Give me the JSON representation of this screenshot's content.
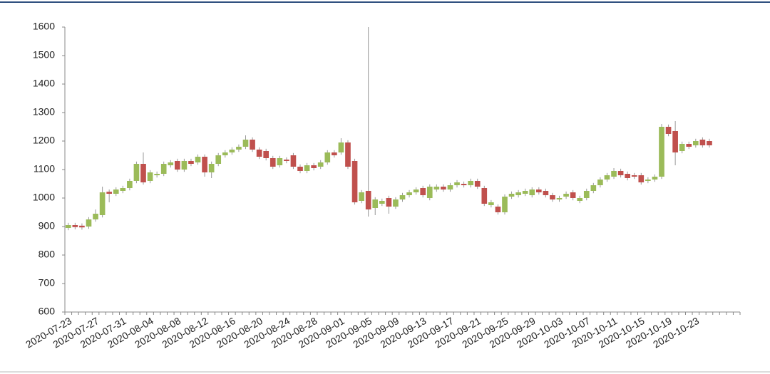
{
  "chart_data": {
    "type": "candlestick",
    "categories": [
      "2020-07-23",
      null,
      null,
      null,
      "2020-07-27",
      null,
      null,
      null,
      "2020-07-31",
      null,
      null,
      null,
      "2020-08-04",
      null,
      null,
      null,
      "2020-08-08",
      null,
      null,
      null,
      "2020-08-12",
      null,
      null,
      null,
      "2020-08-16",
      null,
      null,
      null,
      "2020-08-20",
      null,
      null,
      null,
      "2020-08-24",
      null,
      null,
      null,
      "2020-08-28",
      null,
      null,
      null,
      "2020-09-01",
      null,
      null,
      null,
      "2020-09-05",
      null,
      null,
      null,
      "2020-09-09",
      null,
      null,
      null,
      "2020-09-13",
      null,
      null,
      null,
      "2020-09-17",
      null,
      null,
      null,
      "2020-09-21",
      null,
      null,
      null,
      "2020-09-25",
      null,
      null,
      null,
      "2020-09-29",
      null,
      null,
      null,
      "2020-10-03",
      null,
      null,
      null,
      "2020-10-07",
      null,
      null,
      null,
      "2020-10-11",
      null,
      null,
      null,
      "2020-10-15",
      null,
      null,
      null,
      "2020-10-19",
      null,
      null,
      null,
      "2020-10-23",
      null,
      null,
      null,
      null,
      null,
      null
    ],
    "open": [
      895,
      905,
      903,
      900,
      925,
      940,
      1022,
      1015,
      1025,
      1035,
      1060,
      1120,
      1060,
      1080,
      1085,
      1115,
      1130,
      1100,
      1130,
      1125,
      1145,
      1090,
      1120,
      1150,
      1160,
      1170,
      1180,
      1205,
      1170,
      1165,
      1140,
      1115,
      1135,
      1150,
      1110,
      1095,
      1115,
      1110,
      1125,
      1160,
      1160,
      1195,
      1130,
      990,
      1025,
      965,
      980,
      1000,
      970,
      995,
      1010,
      1020,
      1035,
      1000,
      1030,
      1040,
      1030,
      1045,
      1050,
      1045,
      1060,
      1035,
      975,
      970,
      950,
      1005,
      1010,
      1015,
      1010,
      1030,
      1025,
      1010,
      995,
      1005,
      1020,
      990,
      1000,
      1025,
      1045,
      1065,
      1075,
      1095,
      1085,
      1080,
      1080,
      1060,
      1065,
      1075,
      1250,
      1235,
      1165,
      1190,
      1185,
      1205,
      1200,
      null,
      null,
      null,
      null
    ],
    "high": [
      913,
      913,
      911,
      933,
      960,
      1040,
      1030,
      1038,
      1043,
      1068,
      1128,
      1160,
      1098,
      1093,
      1128,
      1133,
      1138,
      1138,
      1138,
      1153,
      1153,
      1128,
      1158,
      1168,
      1178,
      1188,
      1220,
      1213,
      1178,
      1173,
      1148,
      1148,
      1143,
      1158,
      1118,
      1123,
      1123,
      1133,
      1168,
      1168,
      1210,
      1203,
      1138,
      1028,
      1600,
      1003,
      998,
      1008,
      1003,
      1018,
      1028,
      1038,
      1043,
      1048,
      1048,
      1048,
      1053,
      1063,
      1058,
      1068,
      1068,
      1043,
      993,
      978,
      1013,
      1023,
      1028,
      1033,
      1038,
      1038,
      1033,
      1018,
      1008,
      1023,
      1028,
      1008,
      1033,
      1053,
      1073,
      1088,
      1105,
      1103,
      1093,
      1088,
      1088,
      1073,
      1083,
      1260,
      1258,
      1270,
      1198,
      1198,
      1208,
      1213,
      1208,
      null,
      null,
      null,
      null
    ],
    "low": [
      887,
      890,
      889,
      892,
      917,
      932,
      985,
      1007,
      1017,
      1027,
      1052,
      1047,
      1052,
      1072,
      1077,
      1107,
      1092,
      1092,
      1112,
      1117,
      1075,
      1070,
      1112,
      1142,
      1152,
      1162,
      1172,
      1162,
      1137,
      1132,
      1102,
      1107,
      1122,
      1102,
      1087,
      1087,
      1097,
      1102,
      1117,
      1142,
      1152,
      1102,
      977,
      982,
      935,
      940,
      972,
      945,
      962,
      987,
      1002,
      1012,
      1002,
      992,
      1022,
      1022,
      1022,
      1037,
      1037,
      1037,
      1032,
      972,
      967,
      942,
      942,
      997,
      1002,
      1007,
      1002,
      1012,
      1002,
      987,
      987,
      997,
      992,
      982,
      992,
      1017,
      1037,
      1057,
      1067,
      1072,
      1062,
      1067,
      1047,
      1052,
      1057,
      1067,
      1217,
      1115,
      1157,
      1172,
      1177,
      1177,
      1177,
      null,
      null,
      null,
      null
    ],
    "close": [
      905,
      898,
      897,
      925,
      945,
      1020,
      1015,
      1030,
      1035,
      1060,
      1120,
      1055,
      1090,
      1085,
      1120,
      1125,
      1100,
      1130,
      1120,
      1145,
      1090,
      1120,
      1150,
      1160,
      1170,
      1180,
      1205,
      1170,
      1145,
      1140,
      1110,
      1140,
      1130,
      1110,
      1095,
      1115,
      1105,
      1125,
      1160,
      1150,
      1195,
      1110,
      985,
      1020,
      960,
      995,
      990,
      970,
      995,
      1010,
      1020,
      1030,
      1010,
      1040,
      1040,
      1030,
      1045,
      1055,
      1045,
      1060,
      1040,
      980,
      985,
      950,
      1005,
      1015,
      1020,
      1025,
      1030,
      1020,
      1010,
      995,
      1000,
      1015,
      1000,
      1000,
      1025,
      1045,
      1065,
      1080,
      1095,
      1080,
      1070,
      1075,
      1055,
      1065,
      1075,
      1250,
      1225,
      1160,
      1190,
      1180,
      1200,
      1185,
      1185,
      null,
      null,
      null,
      null
    ],
    "up_color": "#9bbb59",
    "down_color": "#c0504d",
    "ylim": [
      600,
      1600
    ],
    "yticks": [
      600,
      700,
      800,
      900,
      1000,
      1100,
      1200,
      1300,
      1400,
      1500,
      1600
    ]
  }
}
